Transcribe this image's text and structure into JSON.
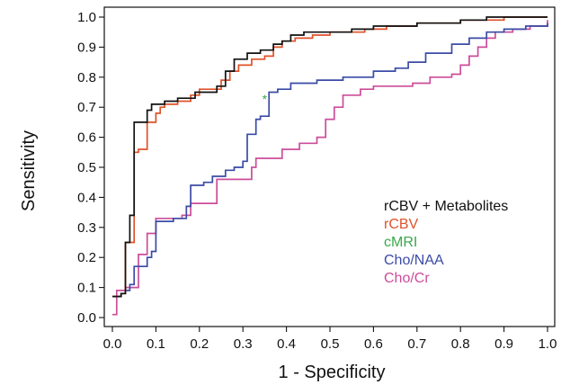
{
  "chart_data": {
    "type": "line",
    "title": "",
    "xlabel": "1 - Specificity",
    "ylabel": "Sensitivity",
    "xlim": [
      0,
      1
    ],
    "ylim": [
      0,
      1
    ],
    "xticks": [
      "0.0",
      "0.1",
      "0.2",
      "0.3",
      "0.4",
      "0.5",
      "0.6",
      "0.7",
      "0.8",
      "0.9",
      "1.0"
    ],
    "yticks": [
      "0.0",
      "0.1",
      "0.2",
      "0.3",
      "0.4",
      "0.5",
      "0.6",
      "0.7",
      "0.8",
      "0.9",
      "1.0"
    ],
    "grid": false,
    "legend_position": "lower-right",
    "series": [
      {
        "name": "rCBV + Metabolites",
        "color": "#111111",
        "style": "step",
        "points": [
          [
            0,
            0.07
          ],
          [
            0.02,
            0.08
          ],
          [
            0.03,
            0.25
          ],
          [
            0.04,
            0.34
          ],
          [
            0.05,
            0.34
          ],
          [
            0.05,
            0.65
          ],
          [
            0.07,
            0.65
          ],
          [
            0.08,
            0.69
          ],
          [
            0.09,
            0.71
          ],
          [
            0.12,
            0.72
          ],
          [
            0.15,
            0.73
          ],
          [
            0.19,
            0.75
          ],
          [
            0.22,
            0.75
          ],
          [
            0.24,
            0.77
          ],
          [
            0.26,
            0.82
          ],
          [
            0.28,
            0.86
          ],
          [
            0.31,
            0.88
          ],
          [
            0.34,
            0.89
          ],
          [
            0.37,
            0.91
          ],
          [
            0.39,
            0.92
          ],
          [
            0.41,
            0.94
          ],
          [
            0.44,
            0.95
          ],
          [
            0.5,
            0.95
          ],
          [
            0.55,
            0.96
          ],
          [
            0.6,
            0.97
          ],
          [
            0.7,
            0.98
          ],
          [
            0.8,
            0.99
          ],
          [
            0.86,
            1.0
          ],
          [
            1.0,
            1.0
          ]
        ]
      },
      {
        "name": "rCBV",
        "color": "#e0522a",
        "style": "step",
        "points": [
          [
            0,
            0.07
          ],
          [
            0.02,
            0.08
          ],
          [
            0.03,
            0.25
          ],
          [
            0.05,
            0.28
          ],
          [
            0.05,
            0.55
          ],
          [
            0.06,
            0.56
          ],
          [
            0.08,
            0.65
          ],
          [
            0.1,
            0.68
          ],
          [
            0.11,
            0.7
          ],
          [
            0.12,
            0.71
          ],
          [
            0.15,
            0.72
          ],
          [
            0.18,
            0.74
          ],
          [
            0.2,
            0.76
          ],
          [
            0.24,
            0.76
          ],
          [
            0.25,
            0.79
          ],
          [
            0.27,
            0.82
          ],
          [
            0.29,
            0.84
          ],
          [
            0.32,
            0.86
          ],
          [
            0.35,
            0.87
          ],
          [
            0.37,
            0.9
          ],
          [
            0.39,
            0.92
          ],
          [
            0.42,
            0.93
          ],
          [
            0.46,
            0.94
          ],
          [
            0.5,
            0.95
          ],
          [
            0.58,
            0.96
          ],
          [
            0.63,
            0.97
          ],
          [
            0.7,
            0.98
          ],
          [
            0.8,
            0.99
          ],
          [
            0.9,
            1.0
          ],
          [
            1.0,
            1.0
          ]
        ]
      },
      {
        "name": "cMRI",
        "color": "#3aa84a",
        "style": "marker",
        "points": [
          [
            0.35,
            0.73
          ]
        ]
      },
      {
        "name": "Cho/NAA",
        "color": "#3b4ba6",
        "style": "step",
        "points": [
          [
            0,
            0.07
          ],
          [
            0.02,
            0.08
          ],
          [
            0.03,
            0.09
          ],
          [
            0.04,
            0.11
          ],
          [
            0.05,
            0.17
          ],
          [
            0.08,
            0.2
          ],
          [
            0.09,
            0.22
          ],
          [
            0.1,
            0.32
          ],
          [
            0.14,
            0.33
          ],
          [
            0.16,
            0.33
          ],
          [
            0.17,
            0.37
          ],
          [
            0.18,
            0.44
          ],
          [
            0.21,
            0.45
          ],
          [
            0.23,
            0.47
          ],
          [
            0.26,
            0.49
          ],
          [
            0.28,
            0.5
          ],
          [
            0.3,
            0.52
          ],
          [
            0.31,
            0.61
          ],
          [
            0.33,
            0.66
          ],
          [
            0.34,
            0.67
          ],
          [
            0.36,
            0.75
          ],
          [
            0.38,
            0.76
          ],
          [
            0.41,
            0.78
          ],
          [
            0.47,
            0.79
          ],
          [
            0.53,
            0.8
          ],
          [
            0.58,
            0.8
          ],
          [
            0.6,
            0.82
          ],
          [
            0.65,
            0.83
          ],
          [
            0.68,
            0.85
          ],
          [
            0.72,
            0.88
          ],
          [
            0.78,
            0.91
          ],
          [
            0.82,
            0.93
          ],
          [
            0.86,
            0.95
          ],
          [
            0.9,
            0.96
          ],
          [
            0.95,
            0.97
          ],
          [
            1.0,
            0.98
          ]
        ]
      },
      {
        "name": "Cho/Cr",
        "color": "#cc4d9a",
        "style": "step",
        "points": [
          [
            0,
            0.01
          ],
          [
            0.01,
            0.09
          ],
          [
            0.03,
            0.1
          ],
          [
            0.06,
            0.21
          ],
          [
            0.08,
            0.28
          ],
          [
            0.1,
            0.33
          ],
          [
            0.16,
            0.34
          ],
          [
            0.18,
            0.38
          ],
          [
            0.24,
            0.46
          ],
          [
            0.3,
            0.46
          ],
          [
            0.32,
            0.5
          ],
          [
            0.33,
            0.53
          ],
          [
            0.39,
            0.56
          ],
          [
            0.43,
            0.58
          ],
          [
            0.47,
            0.6
          ],
          [
            0.49,
            0.66
          ],
          [
            0.51,
            0.7
          ],
          [
            0.53,
            0.74
          ],
          [
            0.57,
            0.76
          ],
          [
            0.6,
            0.77
          ],
          [
            0.64,
            0.77
          ],
          [
            0.69,
            0.78
          ],
          [
            0.73,
            0.8
          ],
          [
            0.78,
            0.81
          ],
          [
            0.8,
            0.84
          ],
          [
            0.82,
            0.87
          ],
          [
            0.84,
            0.9
          ],
          [
            0.86,
            0.93
          ],
          [
            0.88,
            0.95
          ],
          [
            0.92,
            0.96
          ],
          [
            0.96,
            0.97
          ],
          [
            1.0,
            0.99
          ]
        ]
      }
    ]
  }
}
